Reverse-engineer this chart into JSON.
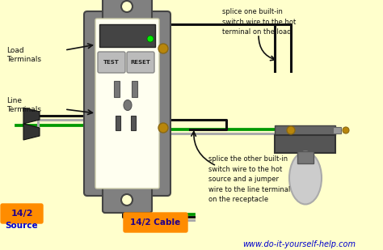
{
  "bg_color": "#FFFFCC",
  "title_url": "www.do-it-yourself-help.com",
  "title_url_color": "#0000CC",
  "label_load": "Load\nTerminals",
  "label_line": "Line\nTerminals",
  "label_source": "Source",
  "label_cable": "14/2 Cable",
  "label_source_box": "14/2",
  "label_test": "TEST",
  "label_reset": "RESET",
  "annotation1": "splice one built-in\nswitch wire to the hot\nterminal on the load",
  "annotation2": "splice the other built-in\nswitch wire to the hot\nsource and a jumper\nwire to the line terminal\non the receptacle",
  "orange_color": "#FF8C00",
  "green_color": "#00AA00",
  "black_color": "#000000",
  "gray_color": "#888888",
  "dark_gray": "#555555",
  "light_gray": "#AAAAAA",
  "brown_color": "#8B4513",
  "outlet_bg": "#FFFFF0",
  "gfci_gray": "#808080",
  "screw_color": "#8B6914",
  "wire_black": "#111111",
  "wire_gray": "#AAAAAA",
  "wire_green": "#009900",
  "plug_color": "#333333"
}
